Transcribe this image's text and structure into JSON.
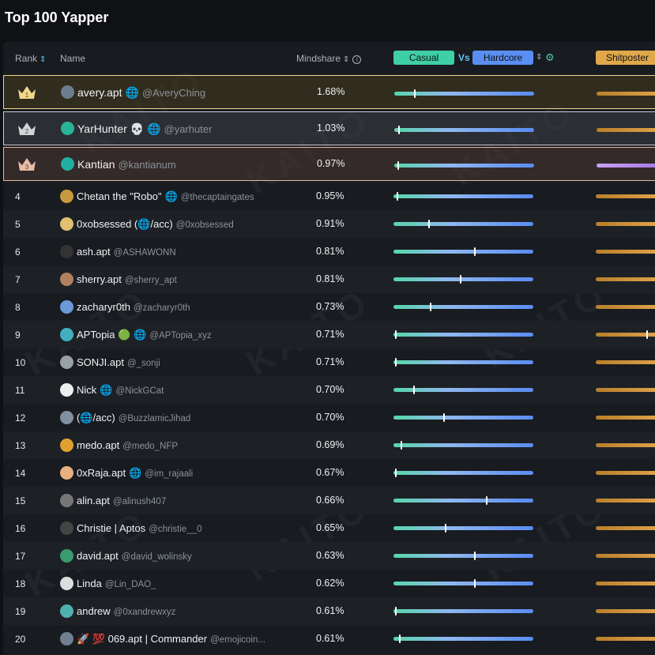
{
  "title": "Top 100 Yapper",
  "watermark": "KAITO",
  "header": {
    "rank": "Rank",
    "name": "Name",
    "mindshare": "Mindshare",
    "casual": "Casual",
    "vs": "Vs",
    "hardcore": "Hardcore",
    "shitposter": "Shitposter",
    "sort_icon": "sort-arrows-icon",
    "info_icon": "info-icon",
    "gear_icon": "gear-icon"
  },
  "colors": {
    "casual": "#3fcfa4",
    "hardcore": "#5b8ef2",
    "shitposter": "#e0a84a",
    "gold": "#f0d78a",
    "silver": "#c9ccd1",
    "bronze": "#e6b9a0"
  },
  "rows": [
    {
      "rank": "1",
      "name": "avery.apt",
      "badge": "🌐",
      "handle": "@AveryChing",
      "mindshare": "1.68%",
      "casual_pos": 0.14,
      "shitposter_style": "orange"
    },
    {
      "rank": "2",
      "name": "YarHunter",
      "badge": "💀 🌐",
      "handle": "@yarhuter",
      "mindshare": "1.03%",
      "casual_pos": 0.03,
      "shitposter_style": "orange"
    },
    {
      "rank": "3",
      "name": "Kantian",
      "badge": "",
      "handle": "@kantianum",
      "mindshare": "0.97%",
      "casual_pos": 0.02,
      "shitposter_style": "purple"
    },
    {
      "rank": "4",
      "name": "Chetan the \"Robo\"",
      "badge": "🌐",
      "handle": "@thecaptaingates",
      "mindshare": "0.95%",
      "casual_pos": 0.02,
      "shitposter_style": "orange"
    },
    {
      "rank": "5",
      "name": "0xobsessed (🌐/acc)",
      "badge": "",
      "handle": "@0xobsessed",
      "mindshare": "0.91%",
      "casual_pos": 0.25,
      "shitposter_style": "orange"
    },
    {
      "rank": "6",
      "name": "ash.apt",
      "badge": "",
      "handle": "@ASHAWONN",
      "mindshare": "0.81%",
      "casual_pos": 0.58,
      "shitposter_style": "orange"
    },
    {
      "rank": "7",
      "name": "sherry.apt",
      "badge": "",
      "handle": "@sherry_apt",
      "mindshare": "0.81%",
      "casual_pos": 0.48,
      "shitposter_style": "orange"
    },
    {
      "rank": "8",
      "name": "zacharyr0th",
      "badge": "",
      "handle": "@zacharyr0th",
      "mindshare": "0.73%",
      "casual_pos": 0.26,
      "shitposter_style": "orange"
    },
    {
      "rank": "9",
      "name": "APTopia",
      "badge": "🟢 🌐",
      "handle": "@APTopia_xyz",
      "mindshare": "0.71%",
      "casual_pos": 0.01,
      "shitposter_style": "orange"
    },
    {
      "rank": "10",
      "name": "SONJI.apt",
      "badge": "",
      "handle": "@_sonji",
      "mindshare": "0.71%",
      "casual_pos": 0.01,
      "shitposter_style": "orange"
    },
    {
      "rank": "11",
      "name": "Nick",
      "badge": "🌐",
      "handle": "@NickGCat",
      "mindshare": "0.70%",
      "casual_pos": 0.14,
      "shitposter_style": "orange"
    },
    {
      "rank": "12",
      "name": "(🌐/acc)",
      "badge": "",
      "handle": "@BuzzlamicJihad",
      "mindshare": "0.70%",
      "casual_pos": 0.36,
      "shitposter_style": "orange"
    },
    {
      "rank": "13",
      "name": "medo.apt",
      "badge": "",
      "handle": "@medo_NFP",
      "mindshare": "0.69%",
      "casual_pos": 0.05,
      "shitposter_style": "orange"
    },
    {
      "rank": "14",
      "name": "0xRaja.apt",
      "badge": "🌐",
      "handle": "@im_rajaali",
      "mindshare": "0.67%",
      "casual_pos": 0.01,
      "shitposter_style": "orange"
    },
    {
      "rank": "15",
      "name": "alin.apt",
      "badge": "",
      "handle": "@alinush407",
      "mindshare": "0.66%",
      "casual_pos": 0.67,
      "shitposter_style": "orange"
    },
    {
      "rank": "16",
      "name": "Christie | Aptos",
      "badge": "",
      "handle": "@christie__0",
      "mindshare": "0.65%",
      "casual_pos": 0.37,
      "shitposter_style": "orange"
    },
    {
      "rank": "17",
      "name": "david.apt",
      "badge": "",
      "handle": "@david_wolinsky",
      "mindshare": "0.63%",
      "casual_pos": 0.58,
      "shitposter_style": "orange"
    },
    {
      "rank": "18",
      "name": "Linda",
      "badge": "",
      "handle": "@Lin_DAO_",
      "mindshare": "0.62%",
      "casual_pos": 0.58,
      "shitposter_style": "orange"
    },
    {
      "rank": "19",
      "name": "andrew",
      "badge": "",
      "handle": "@0xandrewxyz",
      "mindshare": "0.61%",
      "casual_pos": 0.01,
      "shitposter_style": "orange"
    },
    {
      "rank": "20",
      "name": "🚀 💯 069.apt | Commander",
      "badge": "",
      "handle": "@emojicoin...",
      "mindshare": "0.61%",
      "casual_pos": 0.04,
      "shitposter_style": "orange"
    }
  ]
}
